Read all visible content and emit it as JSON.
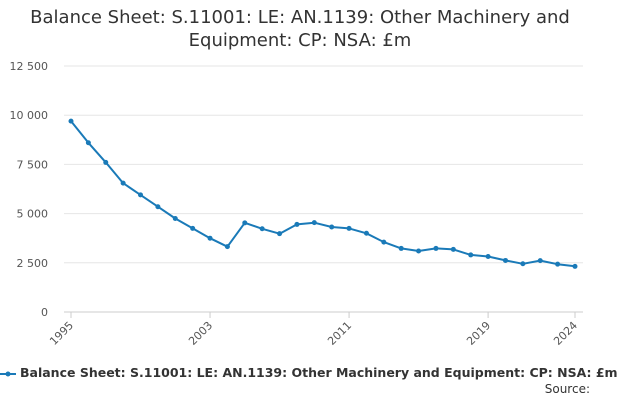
{
  "chart_data": {
    "type": "line",
    "title_line1": "Balance Sheet: S.11001: LE: AN.1139: Other Machinery and",
    "title_line2": "Equipment: CP: NSA: £m",
    "xlabel": "",
    "ylabel": "",
    "x": [
      1995,
      1996,
      1997,
      1998,
      1999,
      2000,
      2001,
      2002,
      2003,
      2004,
      2005,
      2006,
      2007,
      2008,
      2009,
      2010,
      2011,
      2012,
      2013,
      2014,
      2015,
      2016,
      2017,
      2018,
      2019,
      2020,
      2021,
      2022,
      2023,
      2024
    ],
    "x_ticks": [
      "1995",
      "2003",
      "2011",
      "2019",
      "2024"
    ],
    "y_ticks": [
      "0",
      "2 500",
      "5 000",
      "7 500",
      "10 000",
      "12 500"
    ],
    "ylim": [
      0,
      12500
    ],
    "series": [
      {
        "name": "Balance Sheet: S.11001: LE: AN.1139: Other Machinery and Equipment: CP: NSA: £m",
        "color": "#1a7ab8",
        "values": [
          9700,
          8600,
          7600,
          6550,
          5950,
          5350,
          4750,
          4250,
          3750,
          3320,
          4530,
          4230,
          3980,
          4450,
          4540,
          4320,
          4250,
          4000,
          3550,
          3230,
          3100,
          3230,
          3180,
          2900,
          2820,
          2620,
          2450,
          2610,
          2430,
          2320
        ]
      }
    ],
    "grid": true,
    "legend_position": "bottom"
  },
  "source_label": "Source:"
}
